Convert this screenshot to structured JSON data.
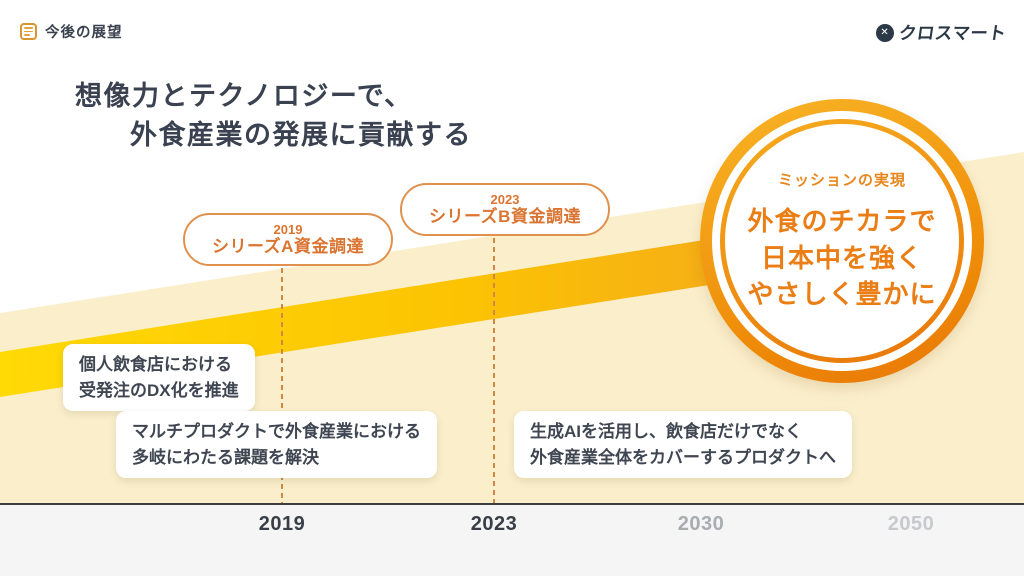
{
  "slide": {
    "header": {
      "label": "今後の展望"
    },
    "brand": {
      "name": "クロスマート",
      "mark_glyph": "✕"
    },
    "title": {
      "line1": "想像力とテクノロジーで、",
      "line2": "外食産業の発展に貢献する"
    },
    "funding_badges": [
      {
        "year": "2019",
        "label": "シリーズA資金調達"
      },
      {
        "year": "2023",
        "label": "シリーズB資金調達"
      }
    ],
    "phase_notes": [
      {
        "line1": "個人飲食店における",
        "line2": "受発注のDX化を推進"
      },
      {
        "line1": "マルチプロダクトで外食産業における",
        "line2": "多岐にわたる課題を解決"
      },
      {
        "line1": "生成AIを活用し、飲食店だけでなく",
        "line2": "外食産業全体をカバーするプロダクトへ"
      }
    ],
    "mission": {
      "tag": "ミッションの実現",
      "line1": "外食のチカラで",
      "line2": "日本中を強く",
      "line3": "やさしく豊かに"
    },
    "timeline_years": [
      {
        "label": "2019",
        "emphasis": "strong"
      },
      {
        "label": "2023",
        "emphasis": "strong"
      },
      {
        "label": "2030",
        "emphasis": "dim"
      },
      {
        "label": "2050",
        "emphasis": "dimmer"
      }
    ],
    "colors": {
      "accent_orange": "#EB7D15",
      "badge_orange": "#DB7430",
      "band_yellow_start": "#FFDA05",
      "band_orange_end": "#EF962B",
      "cream_background": "#FBEFCB",
      "dark_text": "#3A4150",
      "brand_navy": "#2B3947"
    }
  }
}
